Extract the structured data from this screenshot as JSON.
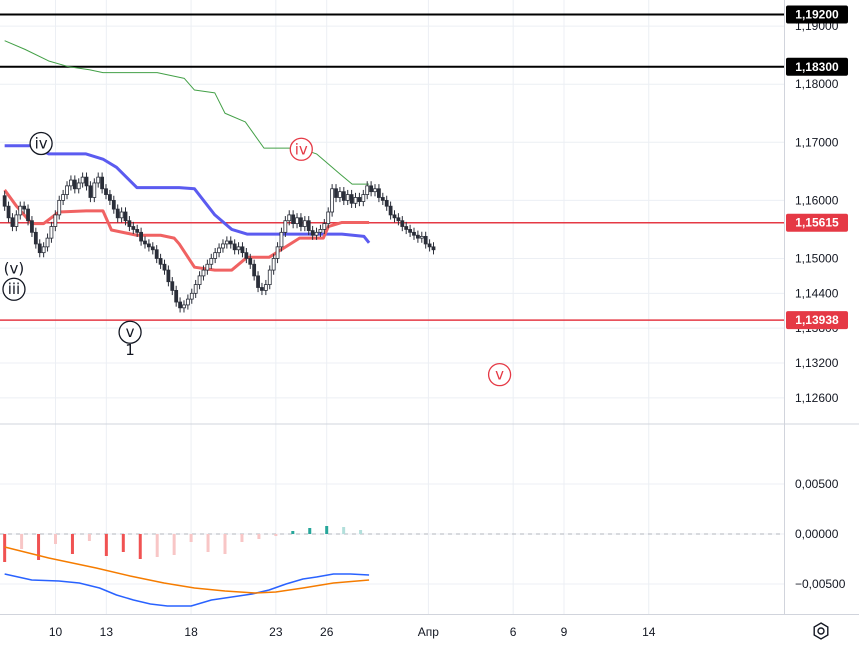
{
  "chart_data": [
    {
      "type": "candlestick",
      "title": "",
      "xlabel": "",
      "ylabel": "",
      "ylim": [
        1.1215,
        1.1945
      ],
      "grid": true,
      "x_ticks": [
        {
          "label": "10",
          "day": 10
        },
        {
          "label": "13",
          "day": 13
        },
        {
          "label": "18",
          "day": 18
        },
        {
          "label": "23",
          "day": 23
        },
        {
          "label": "26",
          "day": 26
        },
        {
          "label": "Апр",
          "day": 32
        },
        {
          "label": "6",
          "day": 37
        },
        {
          "label": "9",
          "day": 40
        },
        {
          "label": "14",
          "day": 45
        }
      ],
      "y_ticks": [
        "1,19000",
        "1,18000",
        "1,17000",
        "1,16000",
        "1,15000",
        "1,14400",
        "1,13800",
        "1,13200",
        "1,12600"
      ],
      "y_tick_values": [
        1.19,
        1.18,
        1.17,
        1.16,
        1.15,
        1.144,
        1.138,
        1.132,
        1.126
      ],
      "levels": [
        {
          "label": "1,19200",
          "value": 1.192,
          "color": "#000000"
        },
        {
          "label": "1,18300",
          "value": 1.183,
          "color": "#000000"
        },
        {
          "label": "1,15615",
          "value": 1.15615,
          "color": "#e53945"
        },
        {
          "label": "1,13938",
          "value": 1.13938,
          "color": "#e53945"
        }
      ],
      "candles": {
        "t_start": 7.0,
        "t_step": 0.23,
        "open": [
          1.1608,
          1.159,
          1.157,
          1.1555,
          1.1575,
          1.159,
          1.1585,
          1.1565,
          1.1545,
          1.1525,
          1.151,
          1.152,
          1.1535,
          1.1555,
          1.1575,
          1.16,
          1.161,
          1.1625,
          1.1635,
          1.162,
          1.163,
          1.164,
          1.1625,
          1.1605,
          1.163,
          1.164,
          1.162,
          1.161,
          1.16,
          1.1585,
          1.157,
          1.158,
          1.1565,
          1.1555,
          1.155,
          1.1545,
          1.153,
          1.1525,
          1.152,
          1.1515,
          1.15,
          1.149,
          1.148,
          1.146,
          1.1445,
          1.1425,
          1.1415,
          1.142,
          1.143,
          1.144,
          1.1455,
          1.147,
          1.148,
          1.149,
          1.15,
          1.151,
          1.1518,
          1.1525,
          1.153,
          1.1525,
          1.1515,
          1.152,
          1.151,
          1.15,
          1.149,
          1.147,
          1.145,
          1.1445,
          1.1455,
          1.148,
          1.15,
          1.152,
          1.1545,
          1.1565,
          1.1575,
          1.156,
          1.157,
          1.1555,
          1.1565,
          1.1548,
          1.154,
          1.1545,
          1.155,
          1.156,
          1.158,
          1.162,
          1.1605,
          1.1615,
          1.16,
          1.161,
          1.1595,
          1.1605,
          1.1598,
          1.161,
          1.1625,
          1.1615,
          1.162,
          1.1605,
          1.16,
          1.159,
          1.1575,
          1.157,
          1.1565,
          1.1555,
          1.155,
          1.1545,
          1.154,
          1.1535,
          1.1538,
          1.1525,
          1.152
        ],
        "close": [
          1.159,
          1.157,
          1.1555,
          1.1575,
          1.159,
          1.1585,
          1.1565,
          1.1545,
          1.1525,
          1.151,
          1.152,
          1.1535,
          1.1555,
          1.1575,
          1.16,
          1.161,
          1.1625,
          1.1635,
          1.162,
          1.163,
          1.164,
          1.1625,
          1.1605,
          1.163,
          1.164,
          1.162,
          1.161,
          1.16,
          1.1585,
          1.157,
          1.158,
          1.1565,
          1.1555,
          1.155,
          1.1545,
          1.153,
          1.1525,
          1.152,
          1.1515,
          1.15,
          1.149,
          1.148,
          1.146,
          1.1445,
          1.1425,
          1.1415,
          1.142,
          1.143,
          1.144,
          1.1455,
          1.147,
          1.148,
          1.149,
          1.15,
          1.151,
          1.1518,
          1.1525,
          1.153,
          1.1525,
          1.1515,
          1.152,
          1.151,
          1.15,
          1.149,
          1.147,
          1.145,
          1.1445,
          1.1455,
          1.148,
          1.15,
          1.152,
          1.1545,
          1.1565,
          1.1575,
          1.156,
          1.157,
          1.1555,
          1.1565,
          1.1548,
          1.154,
          1.1545,
          1.155,
          1.156,
          1.158,
          1.162,
          1.1605,
          1.1615,
          1.16,
          1.161,
          1.1595,
          1.1605,
          1.1598,
          1.161,
          1.1625,
          1.1615,
          1.162,
          1.1605,
          1.16,
          1.159,
          1.1575,
          1.157,
          1.1565,
          1.1555,
          1.155,
          1.1545,
          1.154,
          1.1535,
          1.1538,
          1.1525,
          1.152,
          1.1515
        ]
      },
      "series": [
        {
          "color": "#5b5bf0",
          "t": [
            7,
            8.6,
            9.6,
            11.8,
            12.8,
            13.6,
            14.8,
            16.6,
            17.3,
            18.2,
            19.4,
            20.4,
            21.3,
            22.6,
            24.4,
            25.8,
            26.9,
            28.2,
            28.5
          ],
          "values": [
            1.1694,
            1.1694,
            1.168,
            1.168,
            1.1671,
            1.1657,
            1.1622,
            1.1622,
            1.1622,
            1.162,
            1.1575,
            1.155,
            1.1542,
            1.1542,
            1.1542,
            1.1542,
            1.1542,
            1.1538,
            1.1527
          ]
        },
        {
          "color": "#f06262",
          "t": [
            7,
            7.7,
            8.6,
            9.3,
            10.2,
            11.8,
            12.8,
            13.3,
            14.8,
            16.2,
            17.0,
            17.3,
            18.2,
            19.4,
            20.4,
            21.3,
            22.6,
            24.4,
            25.8,
            26.1,
            26.9,
            28.5
          ],
          "values": [
            1.1618,
            1.159,
            1.156,
            1.156,
            1.158,
            1.1582,
            1.1582,
            1.1549,
            1.154,
            1.154,
            1.1535,
            1.1525,
            1.1485,
            1.148,
            1.148,
            1.1502,
            1.1502,
            1.1535,
            1.1535,
            1.1555,
            1.1562,
            1.1562
          ]
        },
        {
          "color": "#43a047",
          "t": [
            7,
            8.2,
            9.6,
            10.8,
            12.0,
            12.8,
            16.0,
            17.6,
            18.2,
            19.4,
            20.0,
            21.2,
            22.3,
            24.4,
            25.4,
            26.8,
            27.5,
            28.5
          ],
          "values": [
            1.1875,
            1.186,
            1.184,
            1.183,
            1.1825,
            1.182,
            1.182,
            1.181,
            1.179,
            1.1785,
            1.175,
            1.1735,
            1.169,
            1.169,
            1.168,
            1.1645,
            1.1628,
            1.1628
          ]
        }
      ],
      "annotations": [
        {
          "text": "iv",
          "t": 9.15,
          "value": 1.1698,
          "circled": true,
          "color": "#131722"
        },
        {
          "text": "(v)",
          "t": 7.55,
          "value": 1.1483,
          "circled": false,
          "color": "#131722"
        },
        {
          "text": "iii",
          "t": 7.55,
          "value": 1.1447,
          "circled": true,
          "color": "#131722"
        },
        {
          "text": "v",
          "t": 14.4,
          "value": 1.1373,
          "circled": true,
          "color": "#131722"
        },
        {
          "text": "1",
          "t": 14.4,
          "value": 1.1342,
          "circled": false,
          "color": "#131722"
        },
        {
          "text": "iv",
          "t": 24.5,
          "value": 1.1688,
          "circled": true,
          "color": "#e53945"
        },
        {
          "text": "v",
          "t": 36.2,
          "value": 1.13,
          "circled": true,
          "color": "#e53945"
        }
      ]
    },
    {
      "type": "histogram",
      "title": "",
      "ylim": [
        -0.008,
        0.011
      ],
      "y_ticks": [
        "0,00500",
        "0,00000",
        "−0,00500"
      ],
      "y_tick_values": [
        0.005,
        0.0,
        -0.005
      ],
      "bars": {
        "t": [
          7.0,
          8.0,
          9.0,
          10.0,
          11.0,
          12.0,
          13.0,
          14.0,
          15.0,
          16.0,
          17.0,
          18.0,
          19.0,
          20.0,
          21.0,
          22.0,
          23.0,
          24.0,
          25.0,
          26.0,
          27.0,
          28.0
        ],
        "values": [
          -0.0028,
          -0.0015,
          -0.0026,
          -0.001,
          -0.002,
          -0.0007,
          -0.0022,
          -0.0018,
          -0.0025,
          -0.0023,
          -0.0021,
          -0.0008,
          -0.0018,
          -0.002,
          -0.0008,
          -0.0005,
          -0.0002,
          0.0003,
          0.0006,
          0.0008,
          0.0007,
          0.0004
        ],
        "colors": [
          "#f05252",
          "#f8c6c6",
          "#f05252",
          "#f8c6c6",
          "#f05252",
          "#f8c6c6",
          "#f05252",
          "#f05252",
          "#f05252",
          "#f8c6c6",
          "#f8c6c6",
          "#f8c6c6",
          "#f8c6c6",
          "#f8c6c6",
          "#f8c6c6",
          "#f8c6c6",
          "#f8c6c6",
          "#26a69a",
          "#26a69a",
          "#26a69a",
          "#b2dfdb",
          "#b2dfdb"
        ]
      },
      "series": [
        {
          "color": "#2962ff",
          "t": [
            7,
            8.6,
            10.2,
            11.4,
            12.6,
            13.6,
            14.6,
            15.6,
            16.6,
            17.3,
            18.0,
            19.2,
            20.4,
            21.6,
            22.6,
            23.6,
            24.6,
            25.4,
            26.4,
            27.4,
            28.5
          ],
          "values": [
            -0.004,
            -0.0046,
            -0.0047,
            -0.0049,
            -0.0054,
            -0.0061,
            -0.0066,
            -0.007,
            -0.0072,
            -0.0072,
            -0.0072,
            -0.0066,
            -0.0063,
            -0.006,
            -0.0056,
            -0.005,
            -0.0045,
            -0.0043,
            -0.004,
            -0.004,
            -0.0041
          ]
        },
        {
          "color": "#f57c00",
          "t": [
            7,
            9.6,
            12.4,
            14.4,
            16.4,
            18.2,
            20.0,
            21.8,
            23.0,
            24.6,
            26.4,
            28.5
          ],
          "values": [
            -0.0013,
            -0.0024,
            -0.0034,
            -0.0042,
            -0.0049,
            -0.0054,
            -0.0057,
            -0.0059,
            -0.0058,
            -0.0054,
            -0.0049,
            -0.0046
          ]
        }
      ]
    }
  ],
  "icons": {
    "settings": "settings-gear-icon"
  }
}
